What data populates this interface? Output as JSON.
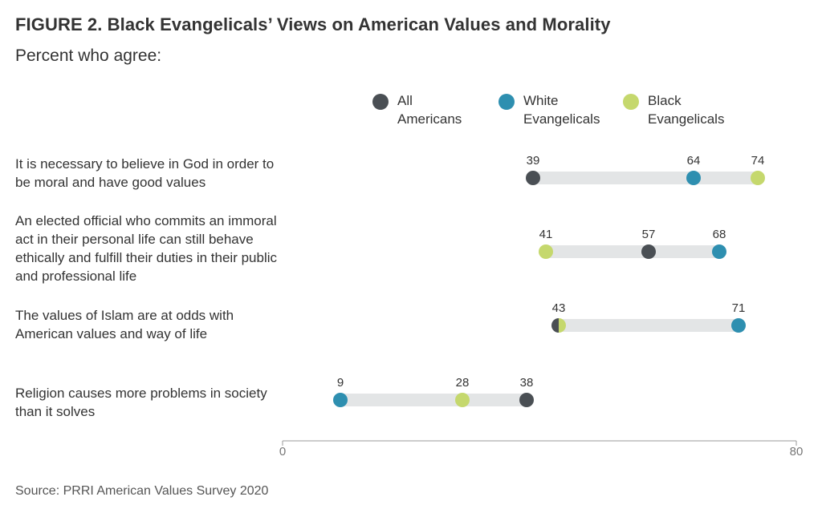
{
  "figure": {
    "title": "FIGURE 2. Black Evangelicals’ Views on American Values and Morality",
    "subtitle": "Percent who agree:",
    "source": "Source: PRRI American Values Survey 2020"
  },
  "colors": {
    "all_americans": "#4a4f54",
    "white_evangelicals": "#2e8fb0",
    "black_evangelicals": "#c5d86d",
    "range_bar": "#e3e5e6",
    "axis": "#999999"
  },
  "chart_data": {
    "type": "dot-range",
    "title": "FIGURE 2. Black Evangelicals’ Views on American Values and Morality",
    "subtitle": "Percent who agree:",
    "xlim": [
      0,
      80
    ],
    "x_ticks": [
      "0",
      "80"
    ],
    "legend_position": "top-right",
    "series": [
      {
        "name": "All Americans",
        "key": "all_americans"
      },
      {
        "name": "White Evangelicals",
        "key": "white_evangelicals"
      },
      {
        "name": "Black Evangelicals",
        "key": "black_evangelicals"
      }
    ],
    "categories": [
      "It is necessary to believe in God in order to be moral and have good values",
      "An elected official who commits an immoral act in their personal life can still behave ethically and fulfill their duties in their public and professional life",
      "The values of Islam are at odds with American values and way of life",
      "Religion causes more problems in society than it solves"
    ],
    "values": {
      "all_americans": [
        39,
        57,
        43,
        38
      ],
      "white_evangelicals": [
        64,
        68,
        71,
        9
      ],
      "black_evangelicals": [
        74,
        41,
        43,
        28
      ]
    },
    "point_labels": [
      [
        "39",
        "64",
        "74"
      ],
      [
        "41",
        "57",
        "68"
      ],
      [
        "43",
        "71"
      ],
      [
        "9",
        "28",
        "38"
      ]
    ]
  },
  "legend": [
    {
      "label": "All Americans",
      "key": "all_americans"
    },
    {
      "label": "White Evangelicals",
      "key": "white_evangelicals"
    },
    {
      "label": "Black Evangelicals",
      "key": "black_evangelicals"
    }
  ],
  "rows": [
    {
      "label": "It is necessary to believe in God in order to be moral and have good values"
    },
    {
      "label": "An elected official who commits an immoral act in their personal life can still behave ethically and fulfill their duties in their public and professional life"
    },
    {
      "label": "The values of Islam are at odds with American values and way of life"
    },
    {
      "label": "Religion causes more problems in society than it solves"
    }
  ]
}
